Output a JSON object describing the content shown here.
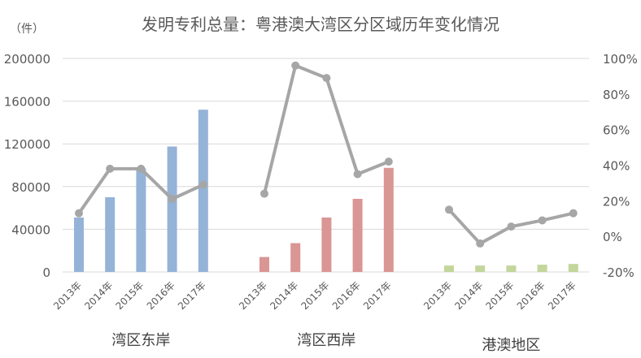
{
  "chart_data": {
    "type": "bar+line",
    "title": "发明专利总量：粤港澳大湾区分区域历年变化情况",
    "ylabel_left": "（件）",
    "ylabel_right": "",
    "left_axis": {
      "ticks": [
        "200000",
        "160000",
        "120000",
        "80000",
        "40000",
        "0"
      ],
      "ylim": [
        0,
        200000
      ]
    },
    "right_axis": {
      "ticks": [
        "100%",
        "80%",
        "60%",
        "40%",
        "20%",
        "0%",
        "-20%"
      ],
      "ylim": [
        -0.2,
        1.0
      ]
    },
    "grid": true,
    "groups": [
      {
        "name": "湾区东岸",
        "color": "#95b3d7",
        "categories": [
          "2013年",
          "2014年",
          "2015年",
          "2016年",
          "2017年"
        ],
        "bar_values": [
          51000,
          70000,
          97000,
          117500,
          152000
        ],
        "growth_rate": [
          0.13,
          0.38,
          0.38,
          0.21,
          0.29
        ]
      },
      {
        "name": "湾区西岸",
        "color": "#d99694",
        "categories": [
          "2013年",
          "2014年",
          "2015年",
          "2016年",
          "2017年"
        ],
        "bar_values": [
          14000,
          27000,
          51000,
          68500,
          97500
        ],
        "growth_rate": [
          0.24,
          0.96,
          0.89,
          0.35,
          0.42
        ]
      },
      {
        "name": "港澳地区",
        "color": "#c3d69b",
        "categories": [
          "2013年",
          "2014年",
          "2015年",
          "2016年",
          "2017年"
        ],
        "bar_values": [
          6000,
          6000,
          6000,
          6800,
          7500
        ],
        "growth_rate": [
          0.15,
          -0.04,
          0.055,
          0.09,
          0.13
        ]
      }
    ],
    "line_color": "#a6a6a6",
    "legend": "none"
  }
}
